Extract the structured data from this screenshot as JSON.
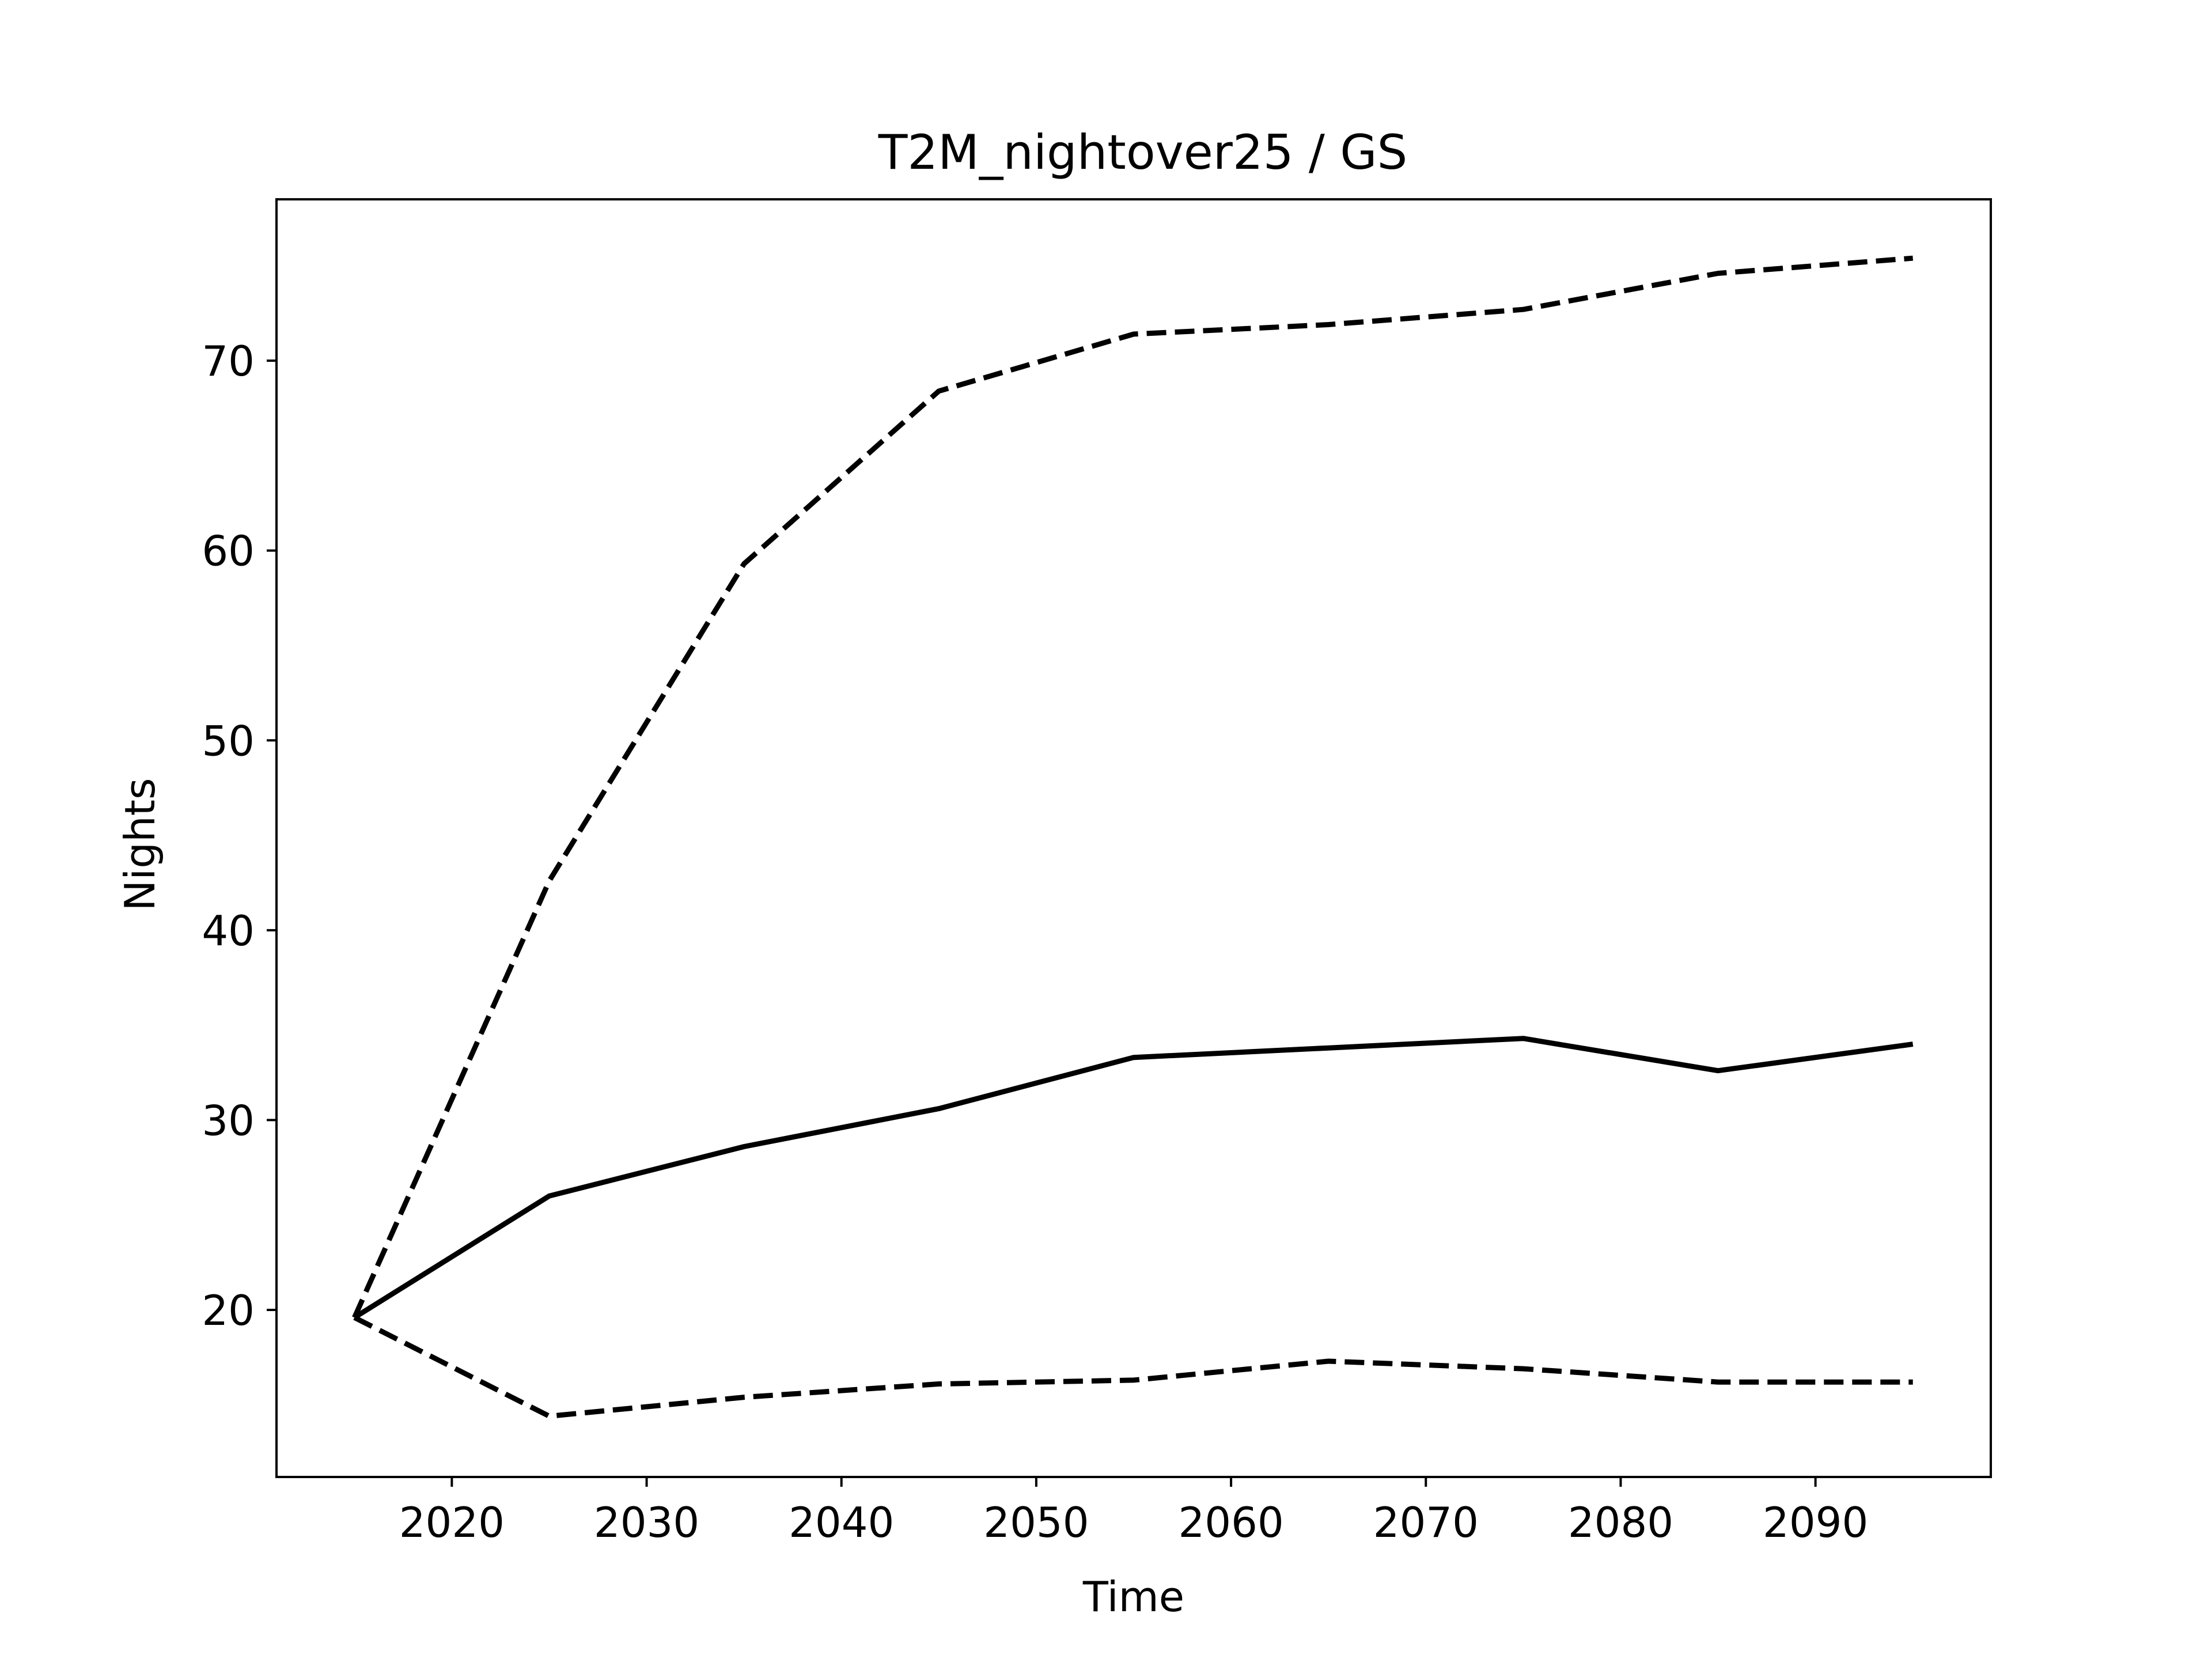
{
  "colors": {
    "line": "#000000",
    "background": "#ffffff"
  },
  "chart_data": {
    "type": "line",
    "title": "T2M_nightover25 / GS",
    "xlabel": "Time",
    "ylabel": "Nights",
    "xlim": [
      2011,
      2099
    ],
    "ylim": [
      11.2,
      78.5
    ],
    "xticks": [
      2020,
      2030,
      2040,
      2050,
      2060,
      2070,
      2080,
      2090
    ],
    "yticks": [
      20,
      30,
      40,
      50,
      60,
      70
    ],
    "grid": false,
    "legend": "none",
    "x": [
      2015,
      2025,
      2035,
      2045,
      2055,
      2065,
      2075,
      2085,
      2095
    ],
    "series": [
      {
        "style": "dashed",
        "values": [
          19.6,
          42.6,
          59.3,
          68.4,
          71.4,
          71.9,
          72.7,
          74.6,
          75.4
        ]
      },
      {
        "style": "solid",
        "values": [
          19.6,
          26.0,
          28.6,
          30.6,
          33.3,
          33.8,
          34.3,
          32.6,
          34.0
        ]
      },
      {
        "style": "dashed",
        "values": [
          19.6,
          14.4,
          15.4,
          16.1,
          16.3,
          17.3,
          16.9,
          16.2,
          16.2
        ]
      }
    ]
  }
}
